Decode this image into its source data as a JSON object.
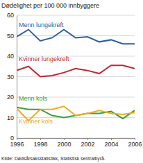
{
  "chart_data": {
    "type": "line",
    "title": "Dødelighet per 100 000 innbyggere",
    "source": "Kilde: Dødsårsaksstatistikk, Statistisk sentralbyrå.",
    "x": [
      1996,
      1997,
      1998,
      1999,
      2000,
      2001,
      2002,
      2003,
      2004,
      2005,
      2006
    ],
    "series": [
      {
        "name": "Menn lungekreft",
        "color": "#2b5fa6",
        "values": [
          49.5,
          53,
          47.5,
          49,
          53,
          49,
          49.5,
          47,
          48,
          46,
          46
        ]
      },
      {
        "name": "Kvinner lungekreft",
        "color": "#c0282d",
        "values": [
          33,
          35,
          30,
          30.5,
          32,
          34,
          33,
          31.5,
          35.5,
          35.5,
          34
        ]
      },
      {
        "name": "Menn kols",
        "color": "#35a03c",
        "values": [
          15,
          14,
          14,
          11,
          10,
          11,
          12,
          12,
          13,
          9.5,
          13.5
        ]
      },
      {
        "name": "Kvinner kols",
        "color": "#f0a91e",
        "values": [
          14.5,
          8.5,
          14,
          14,
          15.5,
          11,
          12,
          13.5,
          12,
          11.5,
          12.5
        ]
      }
    ],
    "xlim": [
      1996,
      2006
    ],
    "xticks": [
      1996,
      1998,
      2000,
      2002,
      2004,
      2006
    ],
    "ylim": [
      0,
      60
    ],
    "yticks": [
      0,
      10,
      20,
      30,
      40,
      50,
      60
    ],
    "grid": true
  }
}
